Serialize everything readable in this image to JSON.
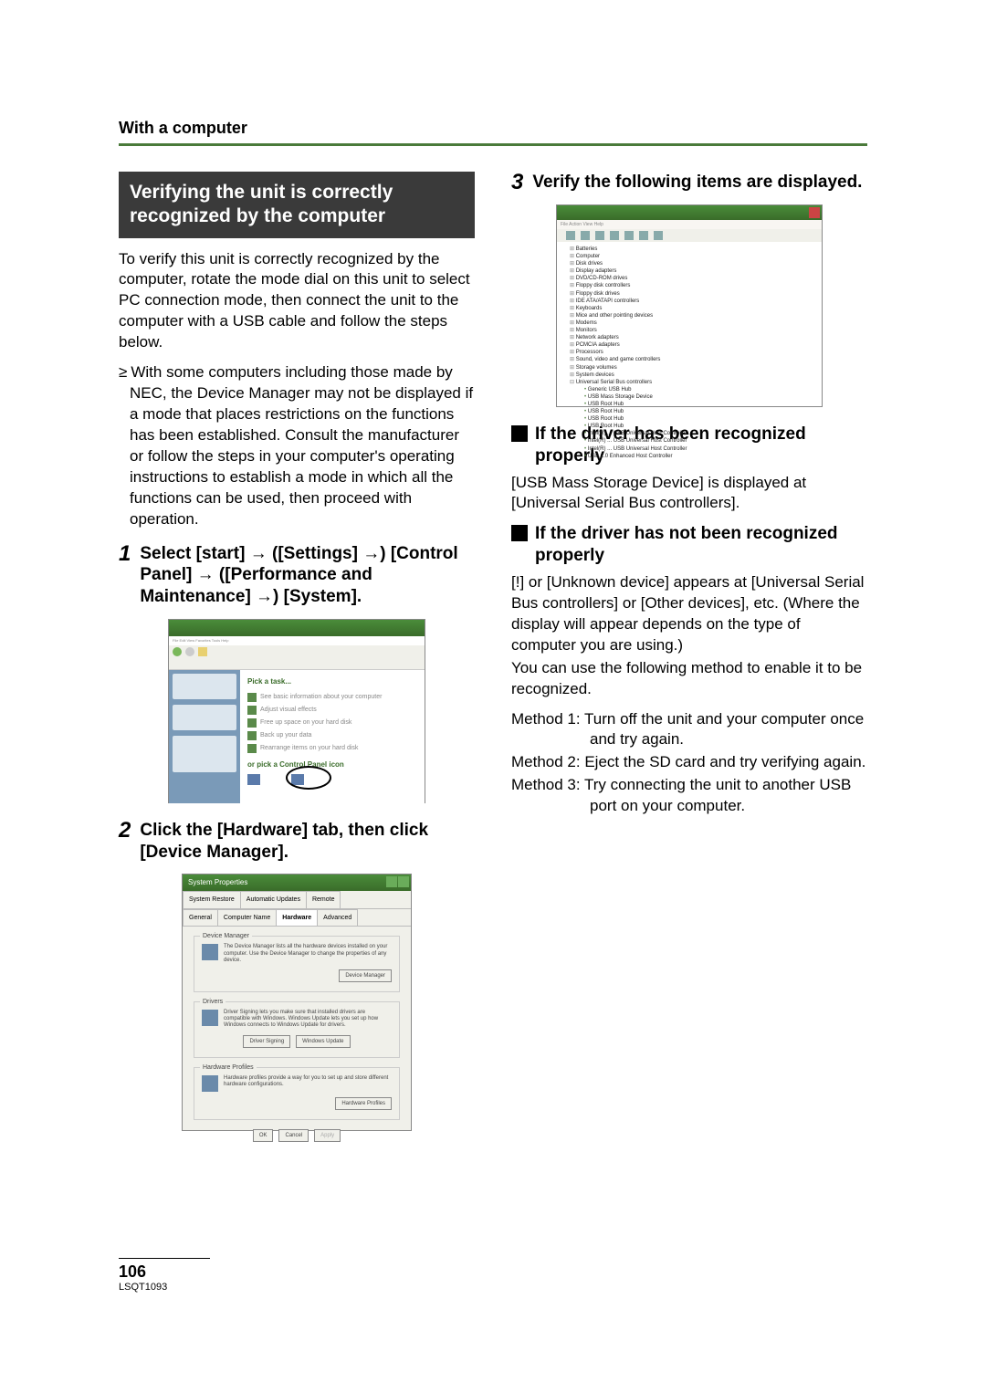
{
  "header": {
    "crumb": "With a computer"
  },
  "accent_color": "#4a7a3a",
  "left": {
    "box_title": "Verifying the unit is correctly recognized by the computer",
    "para1": "To verify this unit is correctly recognized by the computer, rotate the mode dial on this unit to select PC connection mode, then connect the unit to the computer with a USB cable and follow the steps below.",
    "bullet1": "With some computers including those made by NEC, the Device Manager may not be displayed if a mode that places restrictions on the functions has been established. Consult the manufacturer or follow the steps in your computer's operating instructions to establish a mode in which all the functions can be used, then proceed with operation.",
    "step1_num": "1",
    "step1_text": "Select [start] → ([Settings] →) [Control Panel] → ([Performance and Maintenance] →) [System].",
    "step2_num": "2",
    "step2_text": "Click the [Hardware] tab, then click [Device Manager].",
    "cp": {
      "pick_task": "Pick a task...",
      "pick_icon": "or pick a Control Panel icon"
    },
    "sysprops": {
      "title": "System Properties",
      "tabs_row1": [
        "System Restore",
        "Automatic Updates",
        "Remote"
      ],
      "tabs_row2": [
        "General",
        "Computer Name",
        "Hardware",
        "Advanced"
      ],
      "group1_title": "Device Manager",
      "group1_text": "The Device Manager lists all the hardware devices installed on your computer. Use the Device Manager to change the properties of any device.",
      "group1_btn": "Device Manager",
      "group2_title": "Drivers",
      "group2_text": "Driver Signing lets you make sure that installed drivers are compatible with Windows. Windows Update lets you set up how Windows connects to Windows Update for drivers.",
      "group2_btn1": "Driver Signing",
      "group2_btn2": "Windows Update",
      "group3_title": "Hardware Profiles",
      "group3_text": "Hardware profiles provide a way for you to set up and store different hardware configurations.",
      "group3_btn": "Hardware Profiles",
      "ok": "OK",
      "cancel": "Cancel",
      "apply": "Apply"
    }
  },
  "right": {
    "step3_num": "3",
    "step3_text": "Verify the following items are displayed.",
    "dm": {
      "items_lvl1_closed": [
        "Batteries",
        "Computer",
        "Disk drives",
        "Display adapters",
        "DVD/CD-ROM drives",
        "Floppy disk controllers",
        "Floppy disk drives",
        "IDE ATA/ATAPI controllers",
        "Keyboards",
        "Mice and other pointing devices",
        "Modems",
        "Monitors",
        "Network adapters",
        "PCMCIA adapters",
        "Processors",
        "Sound, video and game controllers",
        "Storage volumes",
        "System devices"
      ],
      "open_label": "Universal Serial Bus controllers",
      "items_lvl2": [
        "Generic USB Hub",
        "USB Mass Storage Device",
        "USB Root Hub",
        "USB Root Hub",
        "USB Root Hub",
        "USB Root Hub",
        "Intel(R) ... USB Universal Host Controller",
        "Intel(R) ... USB Universal Host Controller",
        "Intel(R) ... USB Universal Host Controller",
        "USB 2.0 Enhanced Host Controller"
      ]
    },
    "sub1_title": "If the driver has been recognized properly",
    "sub1_body": "[USB Mass Storage Device] is displayed at [Universal Serial Bus controllers].",
    "sub2_title": "If the driver has not been recognized properly",
    "sub2_body1": "[!] or [Unknown device] appears at [Universal Serial Bus controllers] or [Other devices], etc. (Where the display will appear depends on the type of computer you are using.)",
    "sub2_body2": "You can use the following method to enable it to be recognized.",
    "method1": "Method 1:  Turn off the unit and your computer once and try again.",
    "method2": "Method 2:  Eject the SD card and try verifying again.",
    "method3": "Method 3:  Try connecting the unit to another USB port on your computer."
  },
  "footer": {
    "page_number": "106",
    "doc_code": "LSQT1093"
  }
}
